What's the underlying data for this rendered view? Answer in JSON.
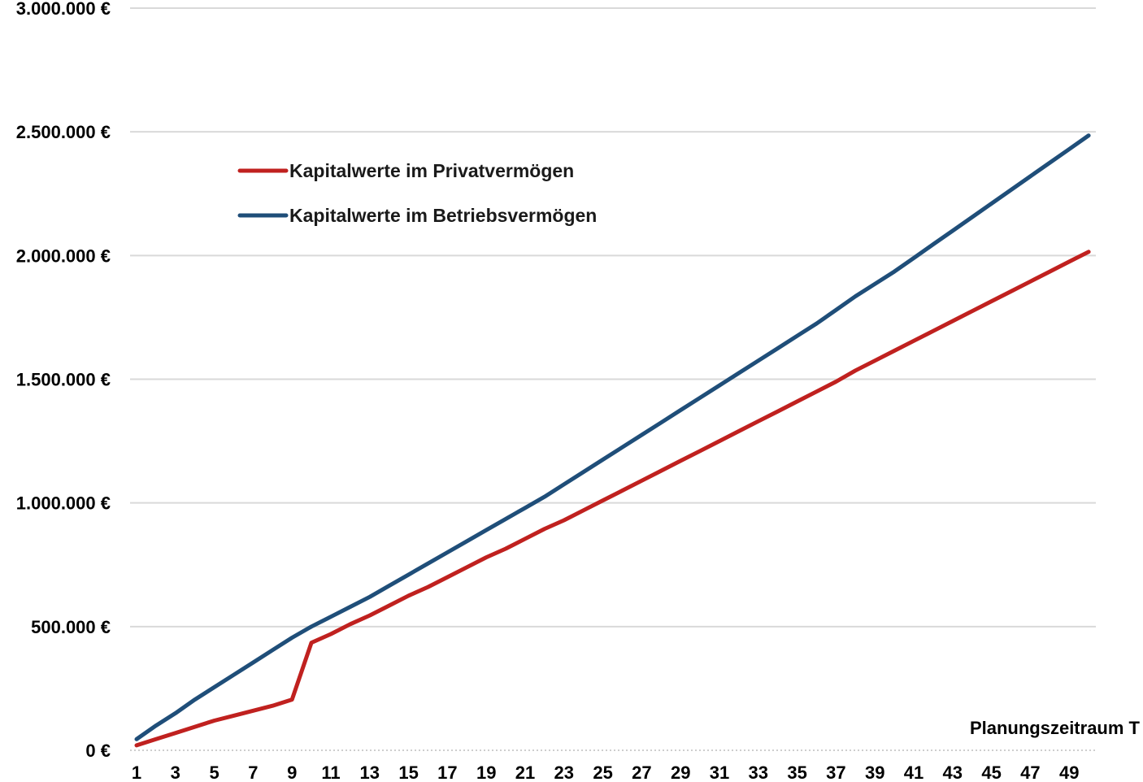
{
  "chart_data": {
    "type": "line",
    "title": "",
    "xlabel": "Planungszeitraum T",
    "ylabel": "",
    "x": [
      1,
      2,
      3,
      4,
      5,
      6,
      7,
      8,
      9,
      10,
      11,
      12,
      13,
      14,
      15,
      16,
      17,
      18,
      19,
      20,
      21,
      22,
      23,
      24,
      25,
      26,
      27,
      28,
      29,
      30,
      31,
      32,
      33,
      34,
      35,
      36,
      37,
      38,
      39,
      40,
      41,
      42,
      43,
      44,
      45,
      46,
      47,
      48,
      49,
      50
    ],
    "x_tick_labels": [
      "1",
      "3",
      "5",
      "7",
      "9",
      "11",
      "13",
      "15",
      "17",
      "19",
      "21",
      "23",
      "25",
      "27",
      "29",
      "31",
      "33",
      "35",
      "37",
      "39",
      "41",
      "43",
      "45",
      "47",
      "49"
    ],
    "ylim": [
      0,
      3000000
    ],
    "y_tick_labels": [
      "0 €",
      "500.000 €",
      "1.000.000 €",
      "1.500.000 €",
      "2.000.000 €",
      "2.500.000 €",
      "3.000.000 €"
    ],
    "y_tick_values": [
      0,
      500000,
      1000000,
      1500000,
      2000000,
      2500000,
      3000000
    ],
    "grid": true,
    "legend_position": "top-left",
    "series": [
      {
        "name": "Kapitalwerte im Privatvermögen",
        "color": "#c0211f",
        "values": [
          20000,
          45000,
          70000,
          95000,
          120000,
          140000,
          160000,
          180000,
          205000,
          435000,
          470000,
          510000,
          545000,
          585000,
          625000,
          660000,
          700000,
          740000,
          780000,
          815000,
          855000,
          895000,
          930000,
          970000,
          1010000,
          1050000,
          1090000,
          1130000,
          1170000,
          1210000,
          1250000,
          1290000,
          1330000,
          1370000,
          1410000,
          1450000,
          1490000,
          1535000,
          1575000,
          1615000,
          1655000,
          1695000,
          1735000,
          1775000,
          1815000,
          1855000,
          1895000,
          1935000,
          1975000,
          2015000
        ]
      },
      {
        "name": "Kapitalwerte im Betriebsvermögen",
        "color": "#1f4e79",
        "values": [
          45000,
          100000,
          150000,
          205000,
          255000,
          305000,
          355000,
          405000,
          455000,
          500000,
          540000,
          580000,
          620000,
          665000,
          710000,
          755000,
          800000,
          845000,
          890000,
          935000,
          980000,
          1025000,
          1075000,
          1125000,
          1175000,
          1225000,
          1275000,
          1325000,
          1375000,
          1425000,
          1475000,
          1525000,
          1575000,
          1625000,
          1675000,
          1725000,
          1780000,
          1835000,
          1885000,
          1935000,
          1990000,
          2045000,
          2100000,
          2155000,
          2210000,
          2265000,
          2320000,
          2375000,
          2430000,
          2485000
        ]
      }
    ]
  }
}
